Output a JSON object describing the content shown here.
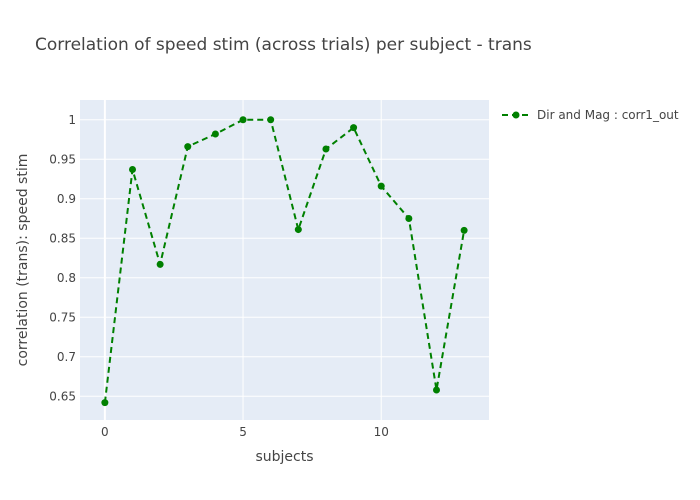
{
  "chart_data": {
    "type": "line",
    "title": "Correlation of speed stim (across trials) per subject - trans",
    "xlabel": "subjects",
    "ylabel": "correlation (trans): speed stim",
    "xlim": [
      -0.9,
      13.9
    ],
    "ylim": [
      0.62,
      1.025
    ],
    "xticks": [
      0,
      5,
      10
    ],
    "yticks": [
      0.65,
      0.7,
      0.75,
      0.8,
      0.85,
      0.9,
      0.95,
      1
    ],
    "ytick_labels": [
      "0.65",
      "0.7",
      "0.75",
      "0.8",
      "0.85",
      "0.9",
      "0.95",
      "1"
    ],
    "grid": true,
    "legend_position": "top-right",
    "series": [
      {
        "name": "Dir and Mag : corr1_out",
        "color": "#008000",
        "line_style": "dashed",
        "marker": "circle",
        "x": [
          0,
          1,
          2,
          3,
          4,
          5,
          6,
          7,
          8,
          9,
          10,
          11,
          12,
          13
        ],
        "y": [
          0.642,
          0.937,
          0.817,
          0.966,
          0.982,
          1.0,
          1.0,
          0.861,
          0.963,
          0.99,
          0.916,
          0.875,
          0.658,
          0.86
        ]
      }
    ]
  }
}
